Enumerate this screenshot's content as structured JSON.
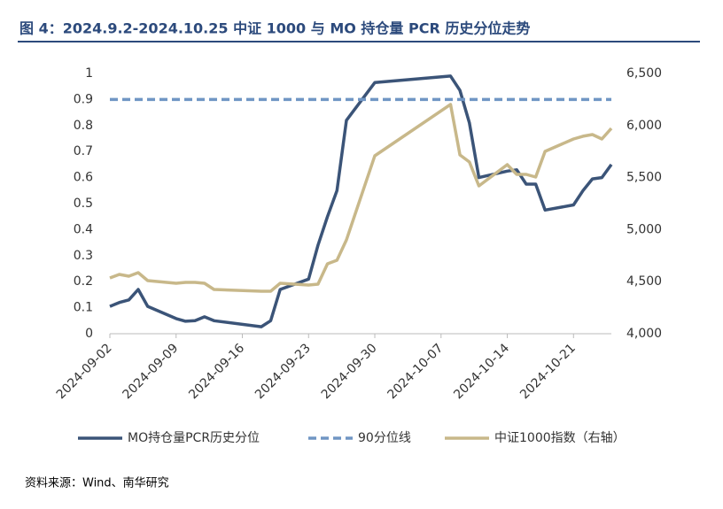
{
  "chart_data": {
    "type": "line",
    "title": "图 4：2024.9.2-2024.10.25 中证 1000 与 MO 持仓量 PCR 历史分位走势",
    "source": "资料来源：Wind、南华研究",
    "x": [
      "2024-09-02",
      "2024-09-03",
      "2024-09-04",
      "2024-09-05",
      "2024-09-06",
      "2024-09-09",
      "2024-09-10",
      "2024-09-11",
      "2024-09-12",
      "2024-09-13",
      "2024-09-18",
      "2024-09-19",
      "2024-09-20",
      "2024-09-23",
      "2024-09-24",
      "2024-09-25",
      "2024-09-26",
      "2024-09-27",
      "2024-09-30",
      "2024-10-08",
      "2024-10-09",
      "2024-10-10",
      "2024-10-11",
      "2024-10-14",
      "2024-10-15",
      "2024-10-16",
      "2024-10-17",
      "2024-10-18",
      "2024-10-21",
      "2024-10-22",
      "2024-10-23",
      "2024-10-24",
      "2024-10-25"
    ],
    "series": [
      {
        "name": "MO持仓量PCR历史分位",
        "color": "#3b5478",
        "style": "solid",
        "values": [
          0.105,
          0.12,
          0.13,
          0.17,
          0.105,
          0.058,
          0.048,
          0.05,
          0.065,
          0.05,
          0.027,
          0.05,
          0.17,
          0.21,
          0.34,
          0.45,
          0.55,
          0.82,
          0.965,
          0.99,
          0.935,
          0.81,
          0.6,
          0.625,
          0.63,
          0.575,
          0.575,
          0.475,
          0.495,
          0.55,
          0.595,
          0.6,
          0.65
        ]
      },
      {
        "name": "90分位线",
        "color": "#7096c4",
        "style": "dashed",
        "values": [
          0.9,
          0.9,
          0.9,
          0.9,
          0.9,
          0.9,
          0.9,
          0.9,
          0.9,
          0.9,
          0.9,
          0.9,
          0.9,
          0.9,
          0.9,
          0.9,
          0.9,
          0.9,
          0.9,
          0.9,
          0.9,
          0.9,
          0.9,
          0.9,
          0.9,
          0.9,
          0.9,
          0.9,
          0.9,
          0.9,
          0.9,
          0.9,
          0.9
        ]
      },
      {
        "name": "中证1000指数（右轴）",
        "color": "#c8b88a",
        "style": "solid",
        "axis": "y2",
        "values": [
          4536,
          4570,
          4553,
          4587,
          4510,
          4485,
          4493,
          4493,
          4485,
          4425,
          4408,
          4408,
          4485,
          4468,
          4476,
          4672,
          4706,
          4901,
          5709,
          6202,
          5718,
          5650,
          5420,
          5624,
          5531,
          5531,
          5505,
          5752,
          5871,
          5897,
          5913,
          5871,
          5973
        ]
      }
    ],
    "xlim": [
      "2024-09-02",
      "2024-10-25"
    ],
    "xticks": [
      "2024-09-02",
      "2024-09-09",
      "2024-09-16",
      "2024-09-23",
      "2024-09-30",
      "2024-10-07",
      "2024-10-14",
      "2024-10-21"
    ],
    "ylim": [
      0,
      1
    ],
    "yticks": [
      0,
      0.1,
      0.2,
      0.3,
      0.4,
      0.5,
      0.6,
      0.7,
      0.8,
      0.9,
      1
    ],
    "y2lim": [
      4000,
      6500
    ],
    "y2ticks": [
      {
        "value": 4000,
        "label": "4,000"
      },
      {
        "value": 4500,
        "label": "4,500"
      },
      {
        "value": 5000,
        "label": "5,000"
      },
      {
        "value": 5500,
        "label": "5,500"
      },
      {
        "value": 6000,
        "label": "6,000"
      },
      {
        "value": 6500,
        "label": "6,500"
      }
    ],
    "legend": "bottom"
  }
}
